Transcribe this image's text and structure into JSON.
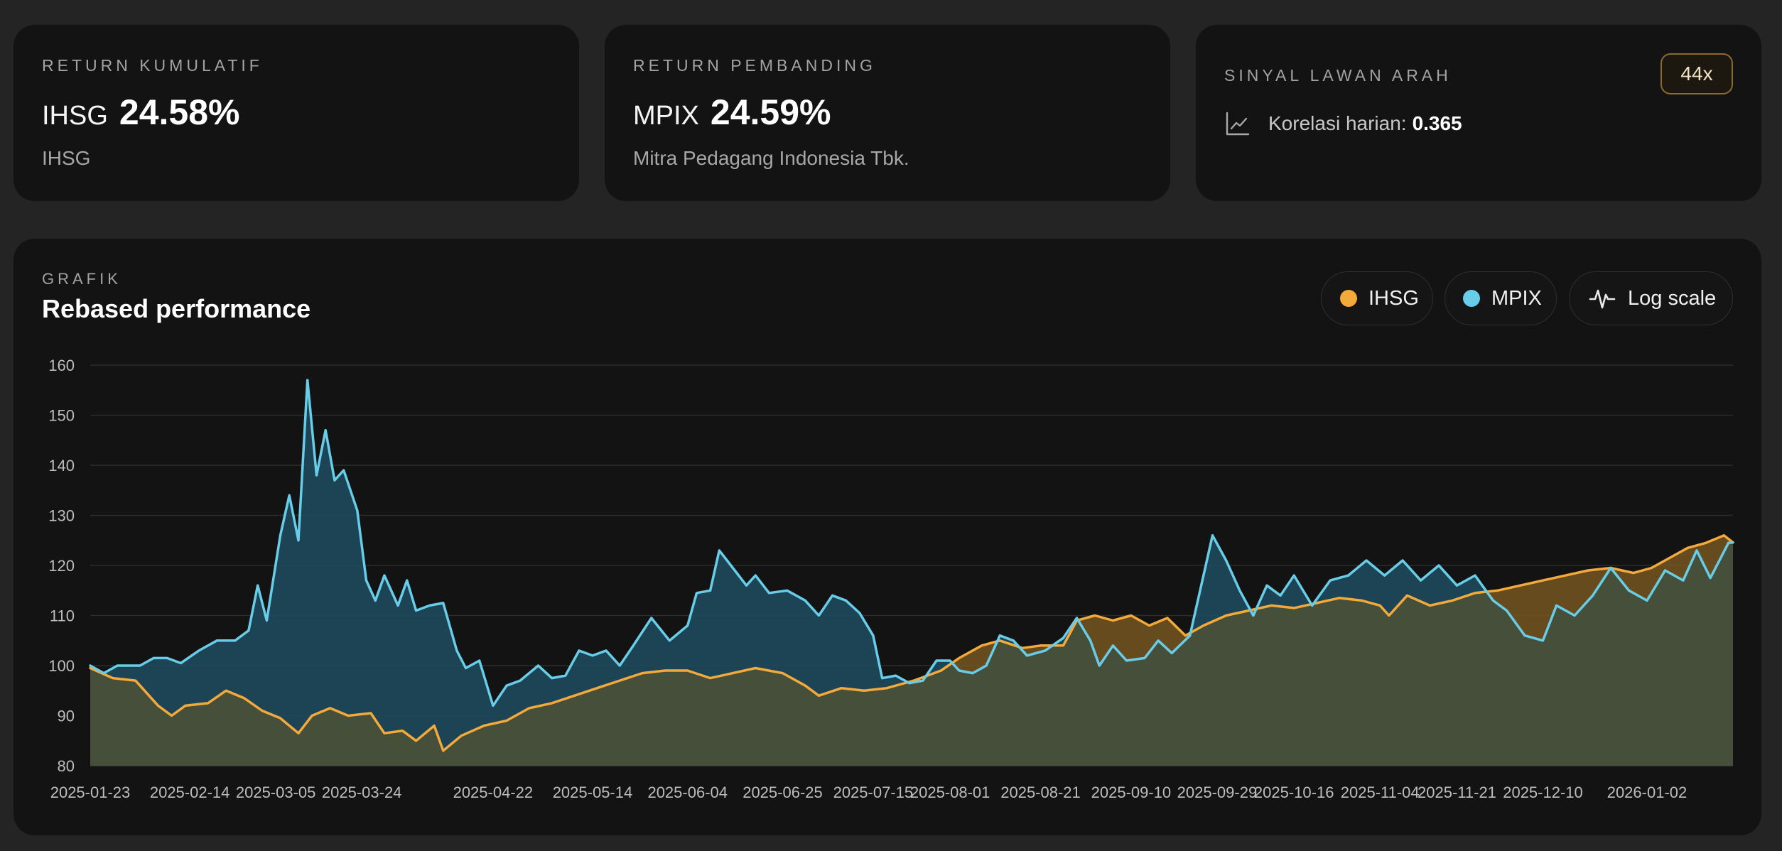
{
  "card1": {
    "kicker": "RETURN KUMULATIF",
    "ticker": "IHSG",
    "value": "24.58%",
    "sub": "IHSG"
  },
  "card2": {
    "kicker": "RETURN PEMBANDING",
    "ticker": "MPIX",
    "value": "24.59%",
    "sub": "Mitra Pedagang Indonesia Tbk."
  },
  "card3": {
    "kicker": "SINYAL LAWAN ARAH",
    "badge": "44x",
    "corr_label": "Korelasi harian:",
    "corr_value": "0.365",
    "icon": "line-chart-icon"
  },
  "chart_panel": {
    "kicker": "GRAFIK",
    "title": "Rebased performance",
    "legend": [
      {
        "label": "IHSG",
        "color": "#f4a93b"
      },
      {
        "label": "MPIX",
        "color": "#67cde8"
      }
    ],
    "log_button": {
      "label": "Log scale",
      "icon": "pulse-icon"
    }
  },
  "colors": {
    "ihsg": "#f4a93b",
    "mpix": "#67cde8",
    "ihsg_fill": "#7c5a22",
    "mpix_fill": "#1f4a5c",
    "below_fill": "#464f3a"
  },
  "chart_data": {
    "type": "line",
    "y_ticks": [
      80,
      90,
      100,
      110,
      120,
      130,
      140,
      150,
      160
    ],
    "ylim": [
      80,
      160
    ],
    "xlim": [
      "2025-01-23",
      "2026-01-21"
    ],
    "x_tick_labels": [
      "2025-01-23",
      "2025-02-14",
      "2025-03-05",
      "2025-03-24",
      "2025-04-22",
      "2025-05-14",
      "2025-06-04",
      "2025-06-25",
      "2025-07-15",
      "2025-08-01",
      "2025-08-21",
      "2025-09-10",
      "2025-09-29",
      "2025-10-16",
      "2025-11-04",
      "2025-11-21",
      "2025-12-10",
      "2026-01-02"
    ],
    "legend_position": "top-right",
    "grid": true,
    "series": [
      {
        "name": "IHSG",
        "color": "#f4a93b",
        "points": [
          [
            "2025-01-23",
            99.5
          ],
          [
            "2025-01-28",
            97.5
          ],
          [
            "2025-02-02",
            97.0
          ],
          [
            "2025-02-07",
            92.0
          ],
          [
            "2025-02-10",
            90.0
          ],
          [
            "2025-02-13",
            92.0
          ],
          [
            "2025-02-18",
            92.5
          ],
          [
            "2025-02-22",
            95.0
          ],
          [
            "2025-02-26",
            93.5
          ],
          [
            "2025-03-02",
            91.0
          ],
          [
            "2025-03-06",
            89.5
          ],
          [
            "2025-03-10",
            86.5
          ],
          [
            "2025-03-13",
            90.0
          ],
          [
            "2025-03-17",
            91.5
          ],
          [
            "2025-03-21",
            90.0
          ],
          [
            "2025-03-26",
            90.5
          ],
          [
            "2025-03-29",
            86.5
          ],
          [
            "2025-04-02",
            87.0
          ],
          [
            "2025-04-05",
            85.0
          ],
          [
            "2025-04-09",
            88.0
          ],
          [
            "2025-04-11",
            83.0
          ],
          [
            "2025-04-15",
            86.0
          ],
          [
            "2025-04-20",
            88.0
          ],
          [
            "2025-04-25",
            89.0
          ],
          [
            "2025-04-30",
            91.5
          ],
          [
            "2025-05-05",
            92.5
          ],
          [
            "2025-05-10",
            94.0
          ],
          [
            "2025-05-15",
            95.5
          ],
          [
            "2025-05-20",
            97.0
          ],
          [
            "2025-05-25",
            98.5
          ],
          [
            "2025-05-30",
            99.0
          ],
          [
            "2025-06-04",
            99.0
          ],
          [
            "2025-06-09",
            97.5
          ],
          [
            "2025-06-14",
            98.5
          ],
          [
            "2025-06-19",
            99.5
          ],
          [
            "2025-06-25",
            98.5
          ],
          [
            "2025-06-30",
            96.0
          ],
          [
            "2025-07-03",
            94.0
          ],
          [
            "2025-07-08",
            95.5
          ],
          [
            "2025-07-13",
            95.0
          ],
          [
            "2025-07-18",
            95.5
          ],
          [
            "2025-07-24",
            97.0
          ],
          [
            "2025-07-30",
            99.0
          ],
          [
            "2025-08-03",
            101.5
          ],
          [
            "2025-08-08",
            104.0
          ],
          [
            "2025-08-12",
            105.0
          ],
          [
            "2025-08-17",
            103.5
          ],
          [
            "2025-08-21",
            104.0
          ],
          [
            "2025-08-26",
            104.0
          ],
          [
            "2025-08-29",
            109.0
          ],
          [
            "2025-09-02",
            110.0
          ],
          [
            "2025-09-06",
            109.0
          ],
          [
            "2025-09-10",
            110.0
          ],
          [
            "2025-09-14",
            108.0
          ],
          [
            "2025-09-18",
            109.5
          ],
          [
            "2025-09-22",
            106.0
          ],
          [
            "2025-09-26",
            108.0
          ],
          [
            "2025-10-01",
            110.0
          ],
          [
            "2025-10-06",
            111.0
          ],
          [
            "2025-10-11",
            112.0
          ],
          [
            "2025-10-16",
            111.5
          ],
          [
            "2025-10-21",
            112.5
          ],
          [
            "2025-10-26",
            113.5
          ],
          [
            "2025-10-31",
            113.0
          ],
          [
            "2025-11-04",
            112.0
          ],
          [
            "2025-11-06",
            110.0
          ],
          [
            "2025-11-10",
            114.0
          ],
          [
            "2025-11-15",
            112.0
          ],
          [
            "2025-11-20",
            113.0
          ],
          [
            "2025-11-25",
            114.5
          ],
          [
            "2025-11-30",
            115.0
          ],
          [
            "2025-12-05",
            116.0
          ],
          [
            "2025-12-10",
            117.0
          ],
          [
            "2025-12-15",
            118.0
          ],
          [
            "2025-12-20",
            119.0
          ],
          [
            "2025-12-25",
            119.5
          ],
          [
            "2025-12-30",
            118.5
          ],
          [
            "2026-01-03",
            119.5
          ],
          [
            "2026-01-07",
            121.5
          ],
          [
            "2026-01-11",
            123.5
          ],
          [
            "2026-01-15",
            124.5
          ],
          [
            "2026-01-19",
            126.0
          ],
          [
            "2026-01-21",
            124.6
          ]
        ]
      },
      {
        "name": "MPIX",
        "color": "#67cde8",
        "points": [
          [
            "2025-01-23",
            100.0
          ],
          [
            "2025-01-26",
            98.5
          ],
          [
            "2025-01-29",
            100.0
          ],
          [
            "2025-02-03",
            100.0
          ],
          [
            "2025-02-06",
            101.5
          ],
          [
            "2025-02-09",
            101.5
          ],
          [
            "2025-02-12",
            100.5
          ],
          [
            "2025-02-16",
            103.0
          ],
          [
            "2025-02-20",
            105.0
          ],
          [
            "2025-02-24",
            105.0
          ],
          [
            "2025-02-27",
            107.0
          ],
          [
            "2025-03-01",
            116.0
          ],
          [
            "2025-03-03",
            109.0
          ],
          [
            "2025-03-06",
            126.0
          ],
          [
            "2025-03-08",
            134.0
          ],
          [
            "2025-03-10",
            125.0
          ],
          [
            "2025-03-12",
            157.0
          ],
          [
            "2025-03-14",
            138.0
          ],
          [
            "2025-03-16",
            147.0
          ],
          [
            "2025-03-18",
            137.0
          ],
          [
            "2025-03-20",
            139.0
          ],
          [
            "2025-03-23",
            131.0
          ],
          [
            "2025-03-25",
            117.0
          ],
          [
            "2025-03-27",
            113.0
          ],
          [
            "2025-03-29",
            118.0
          ],
          [
            "2025-04-01",
            112.0
          ],
          [
            "2025-04-03",
            117.0
          ],
          [
            "2025-04-05",
            111.0
          ],
          [
            "2025-04-08",
            112.0
          ],
          [
            "2025-04-11",
            112.5
          ],
          [
            "2025-04-14",
            103.0
          ],
          [
            "2025-04-16",
            99.5
          ],
          [
            "2025-04-19",
            101.0
          ],
          [
            "2025-04-22",
            92.0
          ],
          [
            "2025-04-25",
            96.0
          ],
          [
            "2025-04-28",
            97.0
          ],
          [
            "2025-05-02",
            100.0
          ],
          [
            "2025-05-05",
            97.5
          ],
          [
            "2025-05-08",
            98.0
          ],
          [
            "2025-05-11",
            103.0
          ],
          [
            "2025-05-14",
            102.0
          ],
          [
            "2025-05-17",
            103.0
          ],
          [
            "2025-05-20",
            100.0
          ],
          [
            "2025-05-23",
            104.0
          ],
          [
            "2025-05-27",
            109.5
          ],
          [
            "2025-05-31",
            105.0
          ],
          [
            "2025-06-04",
            108.0
          ],
          [
            "2025-06-06",
            114.5
          ],
          [
            "2025-06-09",
            115.0
          ],
          [
            "2025-06-11",
            123.0
          ],
          [
            "2025-06-14",
            119.5
          ],
          [
            "2025-06-17",
            116.0
          ],
          [
            "2025-06-19",
            118.0
          ],
          [
            "2025-06-22",
            114.5
          ],
          [
            "2025-06-26",
            115.0
          ],
          [
            "2025-06-30",
            113.0
          ],
          [
            "2025-07-03",
            110.0
          ],
          [
            "2025-07-06",
            114.0
          ],
          [
            "2025-07-09",
            113.0
          ],
          [
            "2025-07-12",
            110.5
          ],
          [
            "2025-07-15",
            106.0
          ],
          [
            "2025-07-17",
            97.5
          ],
          [
            "2025-07-20",
            98.0
          ],
          [
            "2025-07-23",
            96.5
          ],
          [
            "2025-07-26",
            97.0
          ],
          [
            "2025-07-29",
            101.0
          ],
          [
            "2025-08-01",
            101.0
          ],
          [
            "2025-08-03",
            99.0
          ],
          [
            "2025-08-06",
            98.5
          ],
          [
            "2025-08-09",
            100.0
          ],
          [
            "2025-08-12",
            106.0
          ],
          [
            "2025-08-15",
            105.0
          ],
          [
            "2025-08-18",
            102.0
          ],
          [
            "2025-08-22",
            103.0
          ],
          [
            "2025-08-26",
            105.5
          ],
          [
            "2025-08-29",
            109.5
          ],
          [
            "2025-09-01",
            105.0
          ],
          [
            "2025-09-03",
            100.0
          ],
          [
            "2025-09-06",
            104.0
          ],
          [
            "2025-09-09",
            101.0
          ],
          [
            "2025-09-13",
            101.5
          ],
          [
            "2025-09-16",
            105.0
          ],
          [
            "2025-09-19",
            102.5
          ],
          [
            "2025-09-23",
            106.0
          ],
          [
            "2025-09-26",
            118.0
          ],
          [
            "2025-09-28",
            126.0
          ],
          [
            "2025-10-01",
            121.0
          ],
          [
            "2025-10-04",
            115.0
          ],
          [
            "2025-10-07",
            110.0
          ],
          [
            "2025-10-10",
            116.0
          ],
          [
            "2025-10-13",
            114.0
          ],
          [
            "2025-10-16",
            118.0
          ],
          [
            "2025-10-20",
            112.0
          ],
          [
            "2025-10-24",
            117.0
          ],
          [
            "2025-10-28",
            118.0
          ],
          [
            "2025-11-01",
            121.0
          ],
          [
            "2025-11-05",
            118.0
          ],
          [
            "2025-11-09",
            121.0
          ],
          [
            "2025-11-13",
            117.0
          ],
          [
            "2025-11-17",
            120.0
          ],
          [
            "2025-11-21",
            116.0
          ],
          [
            "2025-11-25",
            118.0
          ],
          [
            "2025-11-29",
            113.0
          ],
          [
            "2025-12-02",
            111.0
          ],
          [
            "2025-12-06",
            106.0
          ],
          [
            "2025-12-10",
            105.0
          ],
          [
            "2025-12-13",
            112.0
          ],
          [
            "2025-12-17",
            110.0
          ],
          [
            "2025-12-21",
            114.0
          ],
          [
            "2025-12-25",
            119.5
          ],
          [
            "2025-12-29",
            115.0
          ],
          [
            "2026-01-02",
            113.0
          ],
          [
            "2026-01-06",
            119.0
          ],
          [
            "2026-01-10",
            117.0
          ],
          [
            "2026-01-13",
            123.0
          ],
          [
            "2026-01-16",
            117.5
          ],
          [
            "2026-01-18",
            121.0
          ],
          [
            "2026-01-20",
            124.5
          ],
          [
            "2026-01-21",
            124.6
          ]
        ]
      }
    ]
  }
}
